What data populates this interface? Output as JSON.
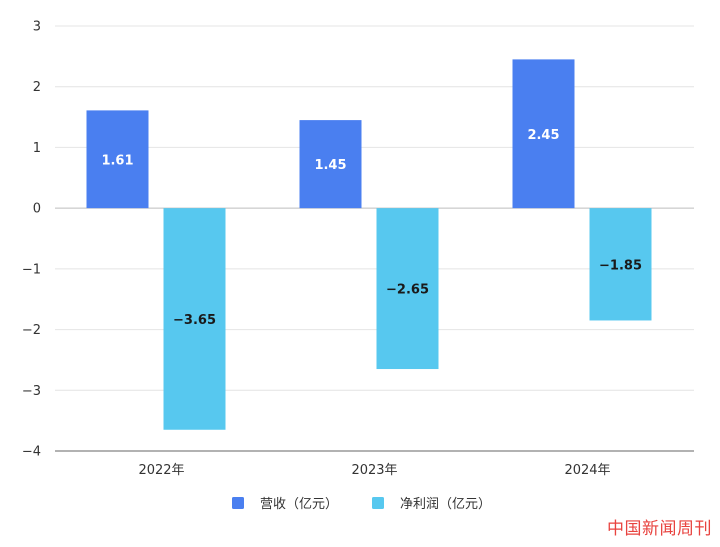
{
  "chart_data": {
    "type": "bar",
    "categories": [
      "2022年",
      "2023年",
      "2024年"
    ],
    "series": [
      {
        "name": "营收（亿元）",
        "values": [
          1.61,
          1.45,
          2.45
        ],
        "color": "#4a7ff0",
        "label_color": "#ffffff"
      },
      {
        "name": "净利润（亿元）",
        "values": [
          -3.65,
          -2.65,
          -1.85
        ],
        "color": "#57c8ef",
        "label_color": "#1a1a1a"
      }
    ],
    "y_ticks": [
      "3",
      "2",
      "1",
      "0",
      "−1",
      "−2",
      "−3",
      "−4"
    ],
    "data_labels": [
      [
        "1.61",
        "1.45",
        "2.45"
      ],
      [
        "−3.65",
        "−2.65",
        "−1.85"
      ]
    ],
    "ylim": [
      -4,
      3
    ],
    "grid": true,
    "legend_position": "bottom"
  },
  "watermark": "中国新闻周刊"
}
